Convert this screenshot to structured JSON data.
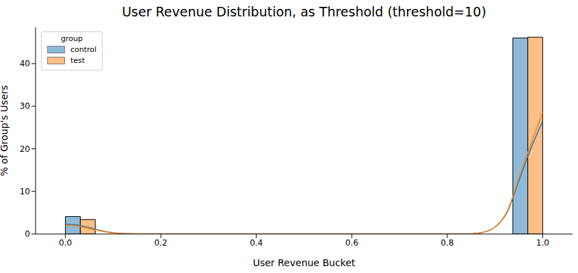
{
  "chart_data": {
    "type": "histogram",
    "title": "User Revenue Distribution, as Threshold (threshold=10)",
    "x_label": "User Revenue Bucket",
    "y_label": "% of Group's Users",
    "legend": "upper left",
    "legend_title": "group",
    "bins": [
      0,
      0.0625,
      0.125,
      0.1875,
      0.25,
      0.3125,
      0.375,
      0.4375,
      0.5,
      0.5625,
      0.625,
      0.6875,
      0.75,
      0.8125,
      0.875,
      0.9375,
      1.0
    ],
    "series": [
      {
        "name": "control",
        "color": "#1f77b4",
        "values": [
          4.1,
          0,
          0,
          0,
          0,
          0,
          0,
          0,
          0,
          0,
          0,
          0,
          0,
          0,
          0,
          46.0
        ],
        "kde": {
          "x": [
            0,
            0.025,
            0.05,
            0.075,
            0.1,
            0.15,
            0.2,
            0.4,
            0.6,
            0.8,
            0.85,
            0.875,
            0.9,
            0.925,
            0.95,
            0.975,
            1.0
          ],
          "values": [
            2.3,
            2.1,
            1.5,
            0.8,
            0.3,
            0.05,
            0,
            0,
            0,
            0,
            0.05,
            0.4,
            1.6,
            5,
            12.5,
            20,
            26.5
          ]
        }
      },
      {
        "name": "test",
        "color": "#ff7f0e",
        "values": [
          3.4,
          0,
          0,
          0,
          0,
          0,
          0,
          0,
          0,
          0,
          0,
          0,
          0,
          0,
          0,
          46.2
        ],
        "kde": {
          "x": [
            0,
            0.025,
            0.05,
            0.075,
            0.1,
            0.15,
            0.2,
            0.4,
            0.6,
            0.8,
            0.85,
            0.875,
            0.9,
            0.925,
            0.95,
            0.975,
            1.0
          ],
          "values": [
            2.1,
            1.9,
            1.3,
            0.7,
            0.25,
            0.04,
            0,
            0,
            0,
            0,
            0.05,
            0.4,
            1.6,
            5.2,
            13,
            21,
            28.5
          ]
        }
      }
    ],
    "xlim": [
      -0.0625,
      1.0625
    ],
    "xticks": [
      {
        "value": 0,
        "label": "0.0"
      },
      0.2,
      0.4,
      0.6,
      0.8,
      {
        "value": 1,
        "label": "1.0"
      }
    ],
    "ylim": [
      0,
      48.5
    ],
    "yticks": [
      0,
      10,
      20,
      30,
      40
    ],
    "grid": false
  }
}
